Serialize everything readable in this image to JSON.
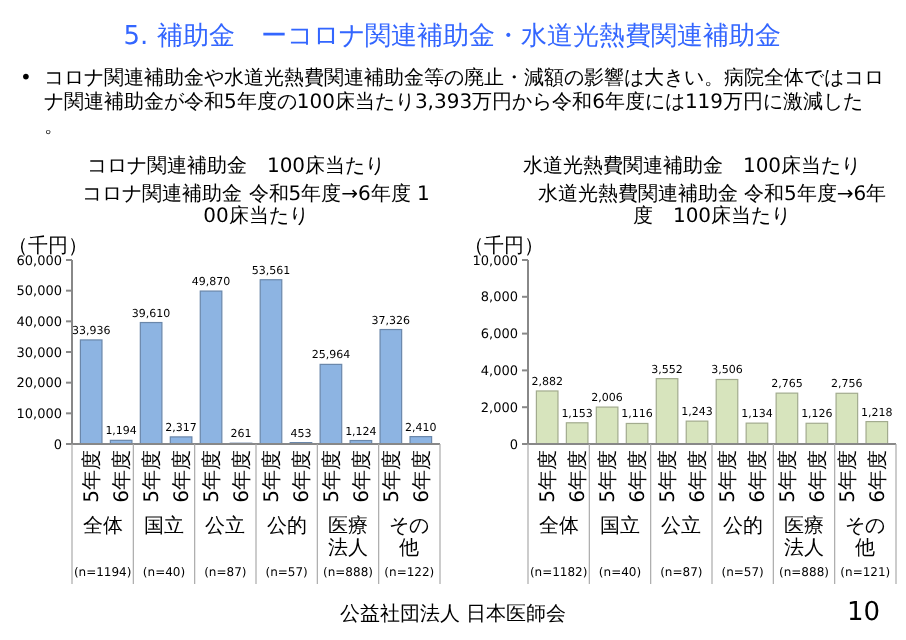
{
  "chart_data": [
    {
      "type": "other",
      "title": "5. 補助金　ーコロナ関連補助金・水道光熱費関連補助金",
      "annotations": [
        "• コロナ関連補助金や水道光熱費関連補助金等の廃止・減額の影響は大きい。病院全体ではコロナ関連補助金が令和5年度の100床当たり3,393万円から令和6年度には119万円に激減した。",
        "公益社団法人 日本医師会",
        "10"
      ]
    },
    {
      "type": "bar",
      "title": "コロナ関連補助金　100床当たり",
      "subtitle": "コロナ関連補助金 令和5年度→6年度 100床当たり",
      "ylabel": "（千円）",
      "categories": [
        "5年度",
        "6年度",
        "5年度",
        "6年度",
        "5年度",
        "6年度",
        "5年度",
        "6年度",
        "5年度",
        "6年度",
        "5年度",
        "6年度"
      ],
      "values": [
        33936,
        1194,
        39610,
        2317,
        49870,
        261,
        53561,
        453,
        25964,
        1124,
        37326,
        2410
      ],
      "color": "#8db4e2",
      "value_labels": [
        "33,936",
        "1,194",
        "39,610",
        "2,317",
        "49,870",
        "261",
        "53,561",
        "453",
        "25,964",
        "1,124",
        "37,326",
        "2,410"
      ],
      "ylim": [
        0,
        60000
      ],
      "yticks": [
        0,
        {
          "value": 10000,
          "label": "10,000"
        },
        {
          "value": 20000,
          "label": "20,000"
        },
        {
          "value": 30000,
          "label": "30,000"
        },
        {
          "value": 40000,
          "label": "40,000"
        },
        {
          "value": 50000,
          "label": "50,000"
        },
        {
          "value": 60000,
          "label": "60,000"
        }
      ],
      "annotations": [
        "全体",
        "(n=1194)",
        "国立",
        "(n=40)",
        "公立",
        "(n=87)",
        "公的",
        "(n=57)",
        "医療法人",
        "(n=888)",
        "その他",
        "(n=122)"
      ]
    },
    {
      "type": "bar",
      "title": "水道光熱費関連補助金　100床当たり",
      "subtitle": "水道光熱費関連補助金 令和5年度→6年度　100床当たり",
      "ylabel": "（千円）",
      "categories": [
        "5年度",
        "6年度",
        "5年度",
        "6年度",
        "5年度",
        "6年度",
        "5年度",
        "6年度",
        "5年度",
        "6年度",
        "5年度",
        "6年度"
      ],
      "values": [
        2882,
        1153,
        2006,
        1116,
        3552,
        1243,
        3506,
        1134,
        2765,
        1126,
        2756,
        1218
      ],
      "color": "#d7e4bd",
      "value_labels": [
        "2,882",
        "1,153",
        "2,006",
        "1,116",
        "3,552",
        "1,243",
        "3,506",
        "1,134",
        "2,765",
        "1,126",
        "2,756",
        "1,218"
      ],
      "ylim": [
        0,
        10000
      ],
      "yticks": [
        0,
        {
          "value": 2000,
          "label": "2,000"
        },
        {
          "value": 4000,
          "label": "4,000"
        },
        {
          "value": 6000,
          "label": "6,000"
        },
        {
          "value": 8000,
          "label": "8,000"
        },
        {
          "value": 10000,
          "label": "10,000"
        }
      ],
      "annotations": [
        "全体",
        "(n=1182)",
        "国立",
        "(n=40)",
        "公立",
        "(n=87)",
        "公的",
        "(n=57)",
        "医療法人",
        "(n=888)",
        "その他",
        "(n=121)"
      ]
    }
  ]
}
